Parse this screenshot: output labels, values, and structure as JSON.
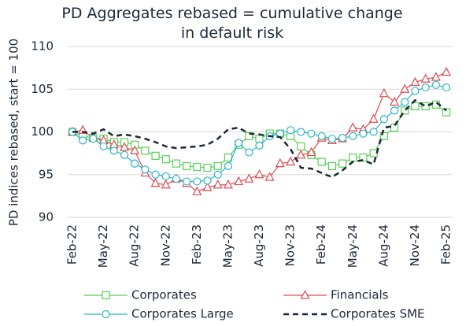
{
  "chart_data": {
    "type": "line",
    "title": "PD Aggregates rebased = cumulative change in default risk",
    "ylabel": "PD indices rebased, start = 100",
    "categories": [
      "Feb-22",
      null,
      null,
      "May-22",
      null,
      null,
      "Aug-22",
      null,
      null,
      "Nov-22",
      null,
      null,
      "Feb-23",
      null,
      null,
      "May-23",
      null,
      null,
      "Aug-23",
      null,
      null,
      "Nov-23",
      null,
      null,
      "Feb-24",
      null,
      null,
      "May-24",
      null,
      null,
      "Aug-24",
      null,
      null,
      "Nov-24",
      null,
      null,
      "Feb-25"
    ],
    "series": [
      {
        "name": "Corporates",
        "color": "#57cf57",
        "marker": "square",
        "dash": false,
        "values": [
          100,
          99.5,
          99.3,
          99.2,
          98.8,
          98.8,
          98.5,
          97.8,
          97.2,
          96.8,
          96.3,
          96,
          95.9,
          95.8,
          96,
          97,
          98.5,
          99.5,
          99.2,
          99.8,
          99.8,
          99.5,
          98.3,
          97.3,
          96.5,
          96,
          96.3,
          97,
          97,
          97.5,
          99.5,
          100.5,
          102.5,
          103,
          103,
          103.2,
          102.3
        ]
      },
      {
        "name": "Financials",
        "color": "#df4a50",
        "marker": "triangle",
        "dash": false,
        "values": [
          100,
          100.2,
          99.3,
          99,
          98.5,
          98.2,
          97.8,
          95.2,
          94,
          93.8,
          94.5,
          94,
          93,
          93.5,
          93.8,
          93.8,
          94.2,
          94.5,
          95,
          94.7,
          96.3,
          96.5,
          97.3,
          97.6,
          99.3,
          99,
          99.2,
          100.5,
          100.3,
          101.5,
          104.5,
          103.5,
          105,
          105.8,
          106.2,
          106.4,
          107
        ]
      },
      {
        "name": "Corporates Large",
        "color": "#2ab5c8",
        "marker": "circle",
        "dash": false,
        "values": [
          100,
          99,
          99.2,
          98.3,
          97.8,
          97.3,
          96.3,
          95.6,
          95,
          94.8,
          94.5,
          94.2,
          94.2,
          94.3,
          95,
          96,
          98.7,
          97.6,
          98.4,
          99.5,
          99.8,
          100.2,
          100,
          99.8,
          99.5,
          99.2,
          99.3,
          99.5,
          99.8,
          100,
          101.5,
          102.5,
          103.5,
          104.8,
          105.2,
          105.5,
          105.2
        ]
      },
      {
        "name": "Corporates SME",
        "color": "#1c2838",
        "marker": null,
        "dash": true,
        "values": [
          100,
          100,
          99.8,
          100.3,
          99.5,
          99.7,
          99.5,
          99.2,
          98.8,
          98.3,
          98.1,
          98.2,
          98.3,
          98.5,
          99.2,
          100.3,
          100.5,
          99.8,
          99.7,
          99.5,
          99.4,
          98,
          95.8,
          95.7,
          95.2,
          94.7,
          95.5,
          96.5,
          96.7,
          96.2,
          100.5,
          100.7,
          102.5,
          103.7,
          103,
          103.5,
          102.5
        ]
      }
    ],
    "ylim": [
      90,
      110
    ],
    "yticks": [
      90,
      95,
      100,
      105,
      110
    ],
    "grid": true
  }
}
